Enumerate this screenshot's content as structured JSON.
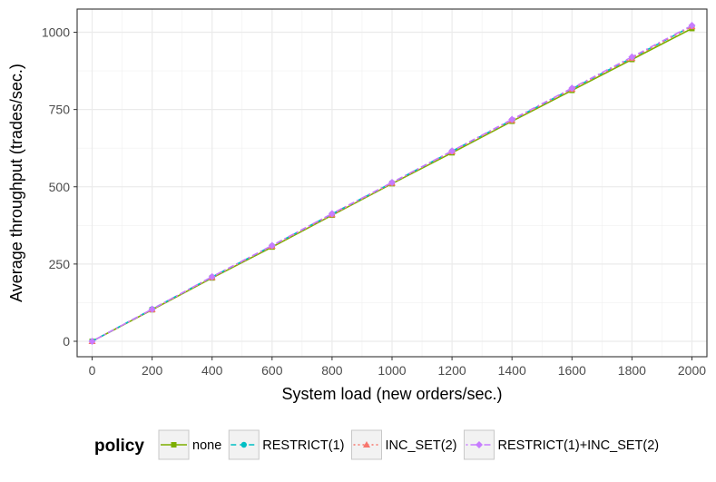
{
  "chart_data": {
    "type": "line",
    "xlabel": "System load (new orders/sec.)",
    "ylabel": "Average throughput (trades/sec.)",
    "xlim": [
      -50,
      2050
    ],
    "ylim": [
      -50,
      1075
    ],
    "x_ticks": [
      0,
      200,
      400,
      600,
      800,
      1000,
      1200,
      1400,
      1600,
      1800,
      2000
    ],
    "y_ticks": [
      0,
      250,
      500,
      750,
      1000
    ],
    "grid": true,
    "legend_title": "policy",
    "legend_position": "bottom",
    "x": [
      0,
      200,
      400,
      600,
      800,
      1000,
      1200,
      1400,
      1600,
      1800,
      2000
    ],
    "series": [
      {
        "name": "none",
        "color": "#7CAE00",
        "marker": "square",
        "dash": "solid",
        "values": [
          0,
          102,
          205,
          305,
          408,
          510,
          610,
          712,
          812,
          912,
          1012
        ]
      },
      {
        "name": "RESTRICT(1)",
        "color": "#00BFC4",
        "marker": "circle",
        "dash": "dashed",
        "values": [
          0,
          104,
          208,
          309,
          412,
          513,
          615,
          716,
          817,
          917,
          1020
        ]
      },
      {
        "name": "INC_SET(2)",
        "color": "#F8766D",
        "marker": "triangle",
        "dash": "dotted",
        "values": [
          0,
          103,
          207,
          308,
          410,
          512,
          614,
          715,
          816,
          916,
          1019
        ]
      },
      {
        "name": "RESTRICT(1)+INC_SET(2)",
        "color": "#C77CFF",
        "marker": "diamond",
        "dash": "dotdash",
        "values": [
          0,
          104,
          209,
          310,
          413,
          514,
          616,
          718,
          819,
          920,
          1022
        ]
      }
    ]
  }
}
